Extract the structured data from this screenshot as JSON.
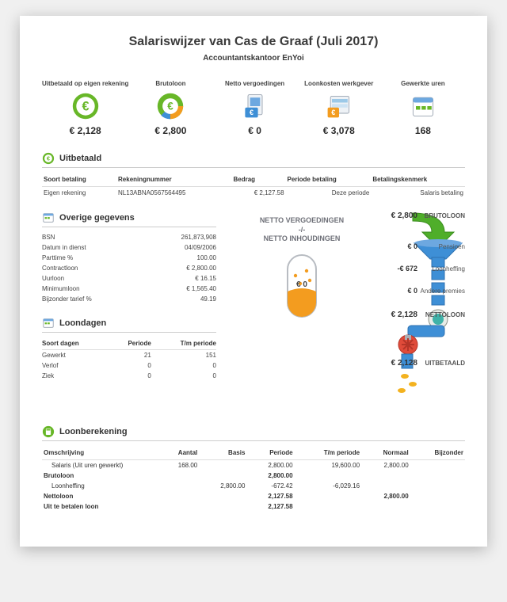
{
  "title": "Salariswijzer van Cas de Graaf (Juli 2017)",
  "subtitle": "Accountantskantoor EnYoi",
  "colors": {
    "green": "#68b728",
    "green_dark": "#4c9a1a",
    "orange": "#f39c1f",
    "blue": "#3e8fd6",
    "blue_dark": "#2f72b0",
    "teal": "#3fb2a8",
    "red": "#e04b3a",
    "grey": "#a9aeb5",
    "text": "#333333"
  },
  "summary": [
    {
      "label": "Uitbetaald op eigen rekening",
      "value": "€ 2,128",
      "icon": "euro-green"
    },
    {
      "label": "Brutoloon",
      "value": "€ 2,800",
      "icon": "euro-pie"
    },
    {
      "label": "Netto vergoedingen",
      "value": "€ 0",
      "icon": "doc-blue"
    },
    {
      "label": "Loonkosten werkgever",
      "value": "€ 3,078",
      "icon": "sheet"
    },
    {
      "label": "Gewerkte uren",
      "value": "168",
      "icon": "calendar"
    }
  ],
  "uitbetaald": {
    "title": "Uitbetaald",
    "headers": [
      "Soort betaling",
      "Rekeningnummer",
      "Bedrag",
      "Periode betaling",
      "Betalingskenmerk"
    ],
    "row": [
      "Eigen rekening",
      "NL13ABNA0567564495",
      "€ 2,127.58",
      "Deze periode",
      "Salaris betaling"
    ]
  },
  "overige": {
    "title": "Overige gegevens",
    "rows": [
      [
        "BSN",
        "261,873,908"
      ],
      [
        "Datum in dienst",
        "04/09/2006"
      ],
      [
        "Parttime %",
        "100.00"
      ],
      [
        "Contractloon",
        "€ 2,800.00"
      ],
      [
        "Uurloon",
        "€ 16.15"
      ],
      [
        "Minimumloon",
        "€ 1,565.40"
      ],
      [
        "Bijzonder tarief %",
        "49.19"
      ]
    ]
  },
  "loondagen": {
    "title": "Loondagen",
    "headers": [
      "Soort dagen",
      "Periode",
      "T/m periode"
    ],
    "rows": [
      [
        "Gewerkt",
        "21",
        "151"
      ],
      [
        "Verlof",
        "0",
        "0"
      ],
      [
        "Ziek",
        "0",
        "0"
      ]
    ]
  },
  "flow": {
    "pill_title_top": "NETTO VERGOEDINGEN",
    "pill_title_mid": "-/-",
    "pill_title_bot": "NETTO INHOUDINGEN",
    "pill_value": "€ 0",
    "items": [
      {
        "value": "€ 2,800",
        "label": "BRUTOLOON",
        "big": true
      },
      {
        "value": "€ 0",
        "label": "Pensioen"
      },
      {
        "value": "-€ 672",
        "label": "Loonheffing"
      },
      {
        "value": "€ 0",
        "label": "Andere premies"
      },
      {
        "value": "€ 2,128",
        "label": "NETTOLOON",
        "big": true
      },
      {
        "value": "€ 2,128",
        "label": "UITBETAALD",
        "big": true
      }
    ]
  },
  "loonberekening": {
    "title": "Loonberekening",
    "headers": [
      "Omschrijving",
      "Aantal",
      "Basis",
      "Periode",
      "T/m periode",
      "Normaal",
      "Bijzonder"
    ],
    "rows": [
      {
        "cells": [
          "Salaris (Uit uren gewerkt)",
          "168.00",
          "",
          "2,800.00",
          "19,600.00",
          "2,800.00",
          ""
        ],
        "indent": true
      },
      {
        "cells": [
          "Brutoloon",
          "",
          "",
          "2,800.00",
          "",
          "",
          ""
        ],
        "bold": true
      },
      {
        "cells": [
          "Loonheffing",
          "",
          "2,800.00",
          "-672.42",
          "-6,029.16",
          "",
          ""
        ],
        "indent": true
      },
      {
        "cells": [
          "Nettoloon",
          "",
          "",
          "2,127.58",
          "",
          "2,800.00",
          ""
        ],
        "bold": true
      },
      {
        "cells": [
          "Uit te betalen loon",
          "",
          "",
          "2,127.58",
          "",
          "",
          ""
        ],
        "bold": true
      }
    ]
  }
}
